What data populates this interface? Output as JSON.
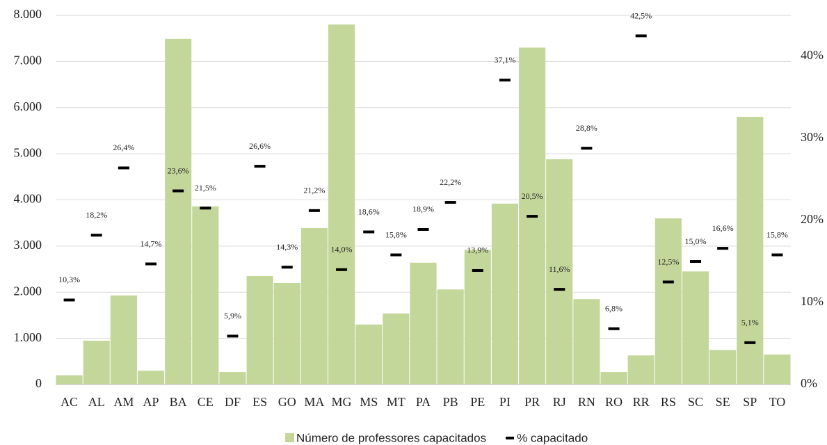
{
  "chart_data": {
    "type": "bar",
    "categories": [
      "AC",
      "AL",
      "AM",
      "AP",
      "BA",
      "CE",
      "DF",
      "ES",
      "GO",
      "MA",
      "MG",
      "MS",
      "MT",
      "PA",
      "PB",
      "PE",
      "PI",
      "PR",
      "RJ",
      "RN",
      "RO",
      "RR",
      "RS",
      "SC",
      "SE",
      "SP",
      "TO"
    ],
    "series": [
      {
        "name": "Número de professores capacitados",
        "color": "#c4d79b",
        "values": [
          200,
          950,
          1930,
          300,
          7490,
          3860,
          270,
          2350,
          2200,
          3390,
          7800,
          1300,
          1540,
          2640,
          2060,
          2920,
          3920,
          7300,
          4880,
          1850,
          270,
          630,
          3600,
          2450,
          750,
          5800,
          650
        ]
      },
      {
        "name": "% capacitado",
        "color": "#000000",
        "axis": "y2",
        "marker": "dash",
        "values": [
          10.3,
          18.2,
          26.4,
          14.7,
          23.6,
          21.5,
          5.9,
          26.6,
          14.3,
          21.2,
          14.0,
          18.6,
          15.8,
          18.9,
          22.2,
          13.9,
          37.1,
          20.5,
          11.6,
          28.8,
          6.8,
          42.5,
          12.5,
          15.0,
          16.6,
          5.1,
          15.8
        ],
        "value_labels": [
          "10,3%",
          "18,2%",
          "26,4%",
          "14,7%",
          "23,6%",
          "21,5%",
          "5,9%",
          "26,6%",
          "14,3%",
          "21,2%",
          "14,0%",
          "18,6%",
          "15,8%",
          "18,9%",
          "22,2%",
          "13,9%",
          "37,1%",
          "20,5%",
          "11,6%",
          "28,8%",
          "6,8%",
          "42,5%",
          "12,5%",
          "15,0%",
          "16,6%",
          "5,1%",
          "15,8%"
        ]
      }
    ],
    "ylim": [
      0,
      8000
    ],
    "yticks": [
      0,
      {
        "value": 1000,
        "label": "1.000"
      },
      {
        "value": 2000,
        "label": "2.000"
      },
      {
        "value": 3000,
        "label": "3.000"
      },
      {
        "value": 4000,
        "label": "4.000"
      },
      {
        "value": 5000,
        "label": "5.000"
      },
      {
        "value": 6000,
        "label": "6.000"
      },
      {
        "value": 7000,
        "label": "7.000"
      },
      {
        "value": 8000,
        "label": "8.000"
      }
    ],
    "y2lim": [
      0,
      45
    ],
    "y2ticks": [
      {
        "value": 0,
        "label": "0%"
      },
      {
        "value": 10,
        "label": "10%"
      },
      {
        "value": 20,
        "label": "20%"
      },
      {
        "value": 30,
        "label": "30%"
      },
      {
        "value": 40,
        "label": "40%"
      }
    ],
    "grid": true,
    "legend": "bottom"
  }
}
